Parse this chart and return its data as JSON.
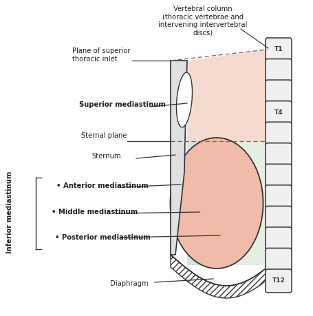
{
  "bg_color": "#ffffff",
  "vertebra_color": "#f0f0f0",
  "vertebra_edge": "#444444",
  "superior_region_color": "#f2cfc0",
  "inferior_posterior_color": "#dce8d8",
  "inferior_anterior_color": "#ccdde8",
  "heart_color": "#f0bba8",
  "line_color": "#333333",
  "dashed_color": "#666666",
  "label_fontsize": 7.2,
  "annotations": {
    "vertebral_column": "Vertebral column\n(thoracic vertebrae and\nintervening intervertebral\ndiscs)",
    "plane_of_superior": "Plane of superior\nthoracic inlet",
    "superior_mediastinum": "Superior mediastinum",
    "sternal_plane": "Sternal plane",
    "sternum": "Sternum",
    "anterior": "• Anterior mediastinum",
    "middle": "• Middle mediastinum",
    "posterior": "• Posterior mediastinum",
    "diaphragm": "Diaphragm",
    "inferior_mediastinum": "Inferior mediastinum",
    "T1": "T1",
    "T4": "T4",
    "T12": "T12"
  }
}
